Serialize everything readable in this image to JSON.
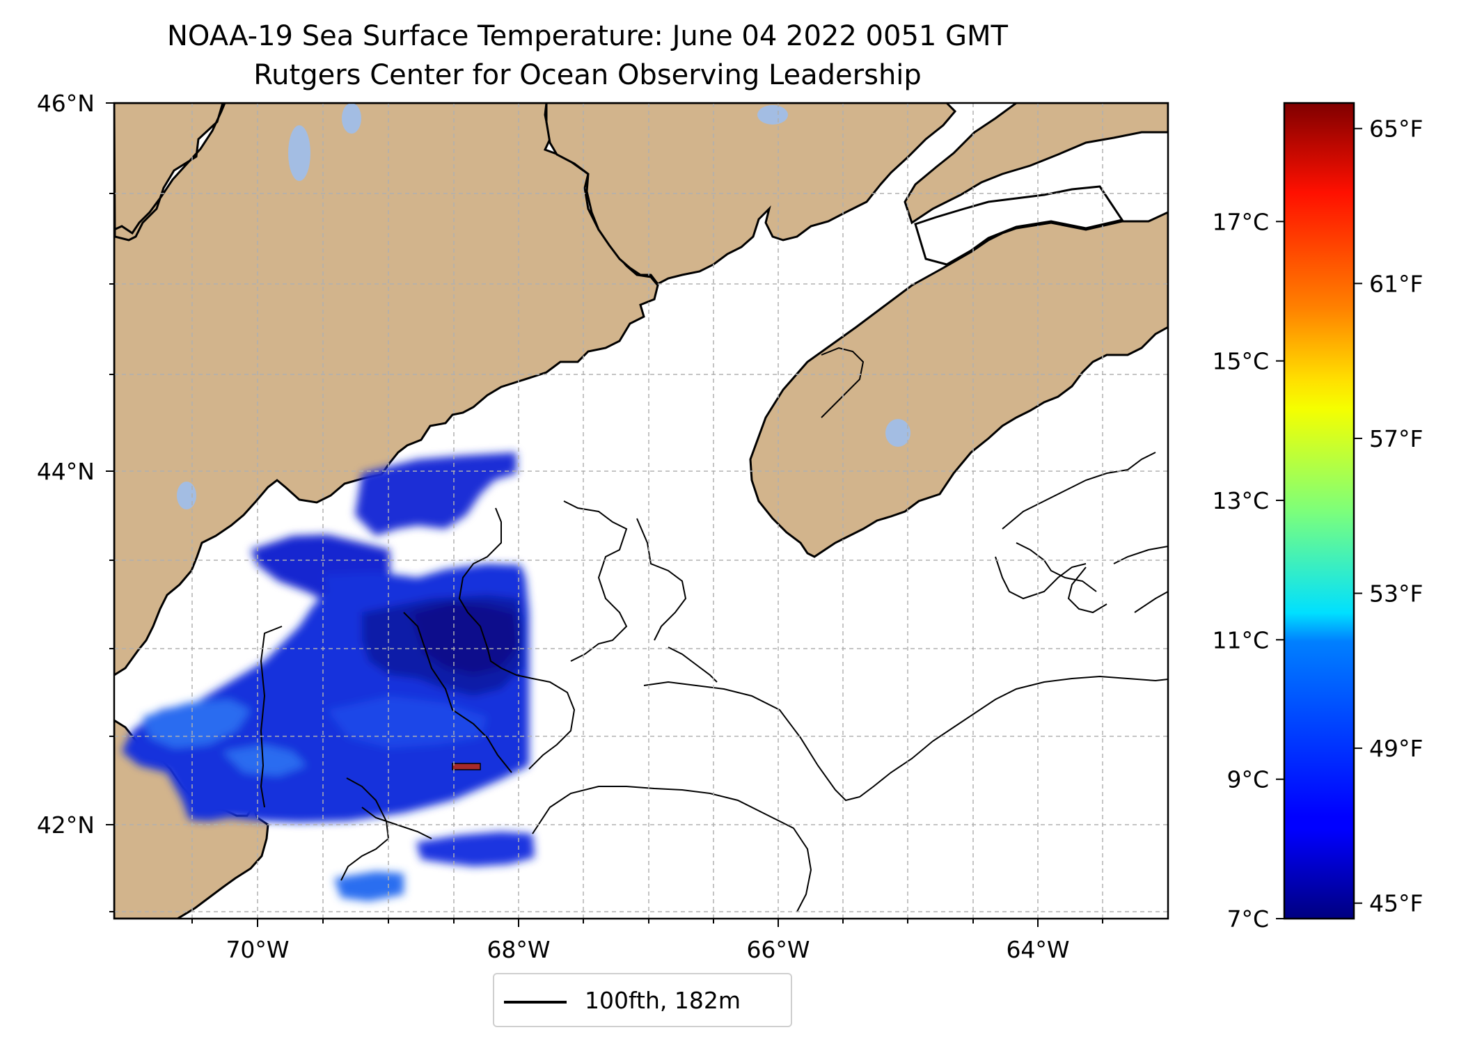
{
  "title": {
    "line1": "NOAA-19 Sea Surface Temperature: June 04 2022 0051 GMT",
    "line2": "Rutgers Center for Ocean Observing Leadership"
  },
  "map": {
    "extent": {
      "lon_min": -71.2,
      "lon_max": -63.1,
      "lat_min": 41.5,
      "lat_max": 46.0
    },
    "lat_ticks": [
      {
        "value": 46,
        "label": "46°N"
      },
      {
        "value": 44,
        "label": "44°N"
      },
      {
        "value": 42,
        "label": "42°N"
      }
    ],
    "lon_ticks": [
      {
        "value": -70,
        "label": "70°W"
      },
      {
        "value": -68,
        "label": "68°W"
      },
      {
        "value": -66,
        "label": "66°W"
      },
      {
        "value": -64,
        "label": "64°W"
      }
    ],
    "gridlines": "dashed gray",
    "land_color": "#d2b48c",
    "lake_color": "#a3bde3",
    "colormap": "jet"
  },
  "legend": {
    "label": "100fth, 182m",
    "line_color": "#000000",
    "placement": "bottom-center"
  },
  "colorbar": {
    "celsius_ticks": [
      {
        "value": 17,
        "label": "17°C"
      },
      {
        "value": 15,
        "label": "15°C"
      },
      {
        "value": 13,
        "label": "13°C"
      },
      {
        "value": 11,
        "label": "11°C"
      },
      {
        "value": 9,
        "label": "9°C"
      },
      {
        "value": 7,
        "label": "7°C"
      }
    ],
    "fahrenheit_ticks": [
      {
        "value": 65,
        "label": "65°F"
      },
      {
        "value": 61,
        "label": "61°F"
      },
      {
        "value": 57,
        "label": "57°F"
      },
      {
        "value": 53,
        "label": "53°F"
      },
      {
        "value": 49,
        "label": "49°F"
      },
      {
        "value": 45,
        "label": "45°F"
      }
    ],
    "range_celsius": [
      7,
      18.7
    ]
  }
}
